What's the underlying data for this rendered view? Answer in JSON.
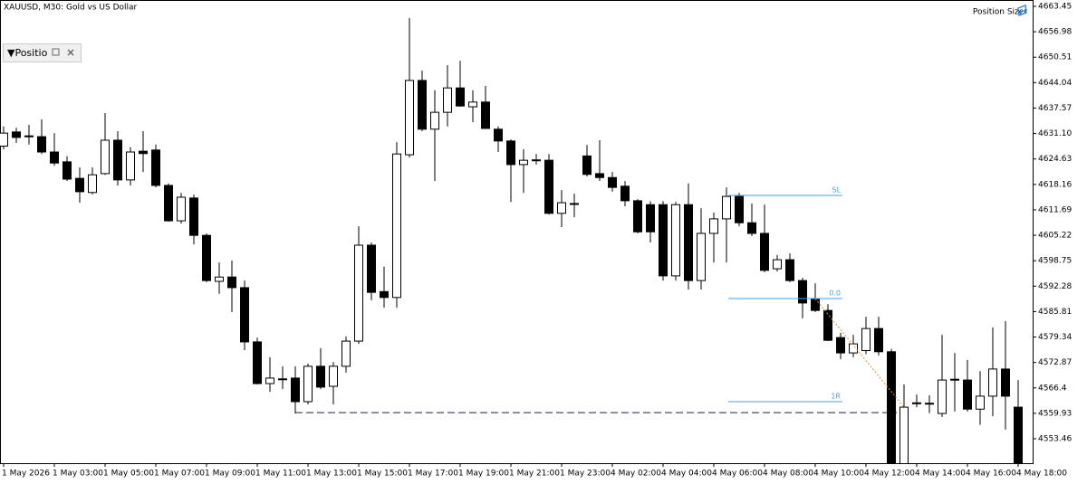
{
  "header": {
    "title": "XAUUSD, M30:  Gold vs US Dollar",
    "tool": "Position Sizer"
  },
  "panel": {
    "title": "▼Positio"
  },
  "chart_data": {
    "type": "candlestick",
    "categories": [
      "1 May 2026",
      null,
      null,
      null,
      "1 May 03:00",
      null,
      null,
      null,
      "1 May 05:00",
      null,
      null,
      null,
      "1 May 07:00",
      null,
      null,
      null,
      "1 May 09:00",
      null,
      null,
      null,
      "1 May 11:00",
      null,
      null,
      null,
      "1 May 13:00",
      null,
      null,
      null,
      "1 May 15:00",
      null,
      null,
      null,
      "1 May 17:00",
      null,
      null,
      null,
      "1 May 19:00",
      null,
      null,
      null,
      "1 May 21:00",
      null,
      null,
      null,
      "1 May 23:00",
      null,
      null,
      null,
      "4 May 02:00",
      null,
      null,
      null,
      "4 May 04:00",
      null,
      null,
      null,
      "4 May 06:00",
      null,
      null,
      null,
      "4 May 08:00",
      null,
      null,
      null,
      "4 May 10:00",
      null,
      null,
      null,
      "4 May 12:00",
      null,
      null,
      null,
      "4 May 14:00",
      null,
      null,
      null,
      "4 May 16:00",
      null,
      null,
      null,
      "4 May 18:00"
    ],
    "open": [
      4627.9,
      4631.5,
      4630.3,
      4630.3,
      4626.4,
      4623.9,
      4619.7,
      4616.1,
      4620.9,
      4629.4,
      4619.3,
      4626.6,
      4626.9,
      4617.9,
      4608.9,
      4614.7,
      4605.2,
      4593.5,
      4594.6,
      4591.9,
      4578.1,
      4567.5,
      4568.6,
      4568.9,
      4562.9,
      4571.9,
      4566.8,
      4571.9,
      4578.3,
      4602.7,
      4590.9,
      4589.4,
      4625.7,
      4644.6,
      4632.2,
      4636.5,
      4642.7,
      4637.9,
      4639.1,
      4632.2,
      4629.2,
      4623.2,
      4624.3,
      4624.3,
      4610.8,
      4613.3,
      4625.4,
      4620.9,
      4619.9,
      4617.7,
      4614.0,
      4613.0,
      4613.0,
      4594.9,
      4613.0,
      4593.7,
      4605.7,
      4609.4,
      4615.1,
      4608.4,
      4605.7,
      4596.7,
      4599.0,
      4593.7,
      4589.1,
      4586.1,
      4579.2,
      4575.3,
      4575.9,
      4581.5,
      4575.6,
      4546.5,
      4562.4,
      4562.5,
      4559.9,
      4568.4,
      4568.4,
      4561.0,
      4564.3,
      4571.2,
      4561.5
    ],
    "high": [
      4632.9,
      4632.6,
      4633.3,
      4634.7,
      4631.2,
      4625.3,
      4622.5,
      4622.5,
      4636.3,
      4631.7,
      4627.6,
      4631.7,
      4628.3,
      4618.4,
      4616.0,
      4615.6,
      4605.7,
      4598.3,
      4598.8,
      4593.7,
      4579.2,
      4574.2,
      4571.9,
      4571.9,
      4572.6,
      4576.5,
      4573.0,
      4579.5,
      4607.5,
      4603.4,
      4597.2,
      4628.9,
      4660.5,
      4647.1,
      4642.1,
      4648.5,
      4649.6,
      4642.1,
      4643.2,
      4632.9,
      4629.6,
      4627.1,
      4625.9,
      4625.9,
      4616.7,
      4615.8,
      4628.2,
      4629.4,
      4621.3,
      4619.0,
      4614.4,
      4613.9,
      4613.9,
      4613.7,
      4618.4,
      4612.1,
      4611.0,
      4617.4,
      4616.0,
      4613.3,
      4613.0,
      4600.2,
      4600.6,
      4594.4,
      4593.0,
      4587.7,
      4580.4,
      4579.9,
      4584.5,
      4584.5,
      4576.3,
      4567.3,
      4564.7,
      4564.5,
      4579.9,
      4575.3,
      4573.5,
      4570.7,
      4581.8,
      4583.4,
      4568.4
    ],
    "low": [
      4627.1,
      4628.7,
      4628.3,
      4625.9,
      4622.9,
      4619.0,
      4613.5,
      4615.6,
      4620.6,
      4617.9,
      4617.9,
      4621.3,
      4617.4,
      4608.7,
      4608.2,
      4602.9,
      4593.3,
      4590.3,
      4585.7,
      4576.0,
      4567.3,
      4565.4,
      4566.1,
      4559.9,
      4562.2,
      4566.1,
      4562.2,
      4570.3,
      4577.6,
      4588.7,
      4586.8,
      4586.8,
      4625.0,
      4631.7,
      4619.0,
      4632.9,
      4637.9,
      4634.0,
      4632.2,
      4626.4,
      4613.7,
      4616.0,
      4623.2,
      4610.5,
      4607.3,
      4609.8,
      4620.2,
      4619.0,
      4616.3,
      4612.6,
      4605.7,
      4603.4,
      4593.7,
      4593.7,
      4591.4,
      4591.4,
      4598.3,
      4598.3,
      4607.5,
      4605.0,
      4595.8,
      4596.0,
      4593.3,
      4584.1,
      4585.7,
      4578.3,
      4573.7,
      4574.2,
      4575.0,
      4574.7,
      4545.0,
      4545.0,
      4561.5,
      4560.0,
      4559.0,
      4560.4,
      4560.4,
      4557.0,
      4559.2,
      4555.8,
      4545.0
    ],
    "close": [
      4631.2,
      4630.1,
      4630.5,
      4626.4,
      4623.6,
      4619.5,
      4616.3,
      4620.6,
      4629.4,
      4619.3,
      4626.4,
      4626.0,
      4617.9,
      4608.9,
      4614.9,
      4605.2,
      4593.7,
      4594.6,
      4591.9,
      4578.1,
      4567.5,
      4568.9,
      4568.7,
      4562.9,
      4571.9,
      4566.6,
      4571.9,
      4578.3,
      4602.7,
      4590.7,
      4589.4,
      4625.9,
      4644.6,
      4632.2,
      4636.5,
      4642.7,
      4638.1,
      4639.1,
      4632.4,
      4629.2,
      4623.2,
      4624.3,
      4624.4,
      4610.8,
      4613.5,
      4613.2,
      4620.7,
      4619.9,
      4617.4,
      4614.0,
      4606.1,
      4606.1,
      4594.9,
      4613.0,
      4593.7,
      4605.7,
      4609.4,
      4615.1,
      4608.4,
      4605.7,
      4596.3,
      4599.0,
      4593.7,
      4588.0,
      4586.1,
      4578.5,
      4575.3,
      4577.6,
      4581.5,
      4575.6,
      4546.5,
      4561.5,
      4562.6,
      4562.4,
      4568.4,
      4568.6,
      4561.0,
      4564.3,
      4571.2,
      4564.3,
      4546.5
    ],
    "up_color": "#ffffff",
    "down_color": "#000000",
    "ylim": [
      4547.25,
      4665.06
    ],
    "yticks": [
      4553.46,
      4559.93,
      4566.4,
      4572.87,
      4579.34,
      4585.81,
      4592.28,
      4598.75,
      4605.22,
      4611.69,
      4618.16,
      4624.63,
      {
        "value": 4631.1,
        "label": "4631.10"
      },
      4637.57,
      4644.04,
      4650.51,
      4656.98,
      4663.45
    ],
    "levels": [
      {
        "label": "SL",
        "value": 4615.36
      },
      {
        "label": "0.0",
        "value": 4589.13
      },
      {
        "label": "1R",
        "value": 4562.9
      }
    ],
    "level_color": "#4a9fe0",
    "hline": {
      "value": 4560.1,
      "color": "#554466"
    },
    "trade_line": {
      "from": 4589.1,
      "to": 4561.5,
      "color": "#e8902a"
    }
  }
}
